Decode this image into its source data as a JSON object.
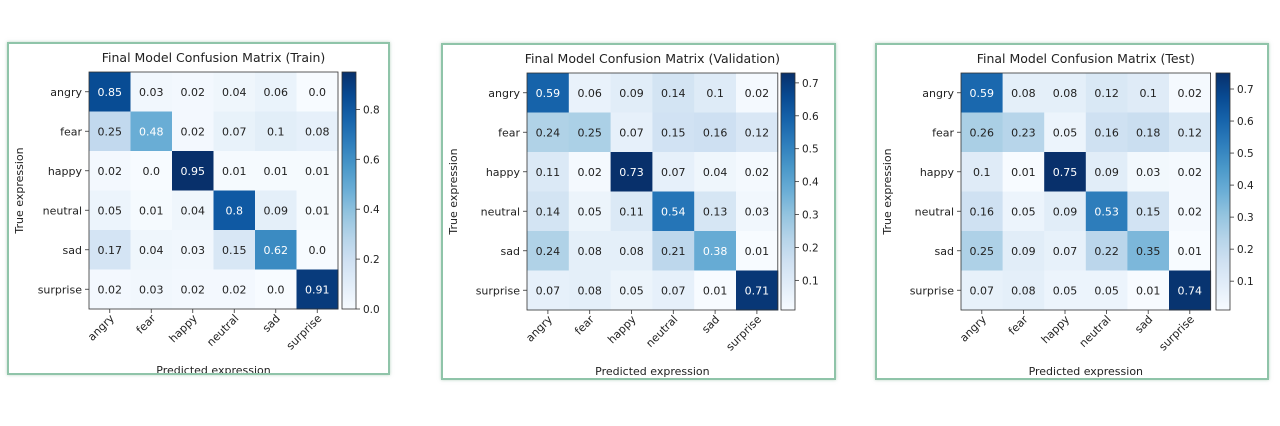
{
  "chart_data": [
    {
      "type": "heatmap",
      "title": "Final Model Confusion Matrix (Train)",
      "xlabel": "Predicted expression",
      "ylabel": "True expression",
      "x_categories": [
        "angry",
        "fear",
        "happy",
        "neutral",
        "sad",
        "surprise"
      ],
      "y_categories": [
        "angry",
        "fear",
        "happy",
        "neutral",
        "sad",
        "surprise"
      ],
      "values": [
        [
          "0.85",
          "0.03",
          "0.02",
          "0.04",
          "0.06",
          "0.0"
        ],
        [
          "0.25",
          "0.48",
          "0.02",
          "0.07",
          "0.1",
          "0.08"
        ],
        [
          "0.02",
          "0.0",
          "0.95",
          "0.01",
          "0.01",
          "0.01"
        ],
        [
          "0.05",
          "0.01",
          "0.04",
          "0.8",
          "0.09",
          "0.01"
        ],
        [
          "0.17",
          "0.04",
          "0.03",
          "0.15",
          "0.62",
          "0.0"
        ],
        [
          "0.02",
          "0.03",
          "0.02",
          "0.02",
          "0.0",
          "0.91"
        ]
      ],
      "colorbar": {
        "range": [
          0.0,
          0.95
        ],
        "ticks": [
          "0.0",
          "0.2",
          "0.4",
          "0.6",
          "0.8"
        ],
        "colormap": "Blues"
      }
    },
    {
      "type": "heatmap",
      "title": "Final Model Confusion Matrix (Validation)",
      "xlabel": "Predicted expression",
      "ylabel": "True expression",
      "x_categories": [
        "angry",
        "fear",
        "happy",
        "neutral",
        "sad",
        "surprise"
      ],
      "y_categories": [
        "angry",
        "fear",
        "happy",
        "neutral",
        "sad",
        "surprise"
      ],
      "values": [
        [
          "0.59",
          "0.06",
          "0.09",
          "0.14",
          "0.1",
          "0.02"
        ],
        [
          "0.24",
          "0.25",
          "0.07",
          "0.15",
          "0.16",
          "0.12"
        ],
        [
          "0.11",
          "0.02",
          "0.73",
          "0.07",
          "0.04",
          "0.02"
        ],
        [
          "0.14",
          "0.05",
          "0.11",
          "0.54",
          "0.13",
          "0.03"
        ],
        [
          "0.24",
          "0.08",
          "0.08",
          "0.21",
          "0.38",
          "0.01"
        ],
        [
          "0.07",
          "0.08",
          "0.05",
          "0.07",
          "0.01",
          "0.71"
        ]
      ],
      "colorbar": {
        "range": [
          0.01,
          0.73
        ],
        "ticks": [
          "0.1",
          "0.2",
          "0.3",
          "0.4",
          "0.5",
          "0.6",
          "0.7"
        ],
        "colormap": "Blues"
      }
    },
    {
      "type": "heatmap",
      "title": "Final Model Confusion Matrix (Test)",
      "xlabel": "Predicted expression",
      "ylabel": "True expression",
      "x_categories": [
        "angry",
        "fear",
        "happy",
        "neutral",
        "sad",
        "surprise"
      ],
      "y_categories": [
        "angry",
        "fear",
        "happy",
        "neutral",
        "sad",
        "surprise"
      ],
      "values": [
        [
          "0.59",
          "0.08",
          "0.08",
          "0.12",
          "0.1",
          "0.02"
        ],
        [
          "0.26",
          "0.23",
          "0.05",
          "0.16",
          "0.18",
          "0.12"
        ],
        [
          "0.1",
          "0.01",
          "0.75",
          "0.09",
          "0.03",
          "0.02"
        ],
        [
          "0.16",
          "0.05",
          "0.09",
          "0.53",
          "0.15",
          "0.02"
        ],
        [
          "0.25",
          "0.09",
          "0.07",
          "0.22",
          "0.35",
          "0.01"
        ],
        [
          "0.07",
          "0.08",
          "0.05",
          "0.05",
          "0.01",
          "0.74"
        ]
      ],
      "colorbar": {
        "range": [
          0.01,
          0.75
        ],
        "ticks": [
          "0.1",
          "0.2",
          "0.3",
          "0.4",
          "0.5",
          "0.6",
          "0.7"
        ],
        "colormap": "Blues"
      }
    }
  ]
}
